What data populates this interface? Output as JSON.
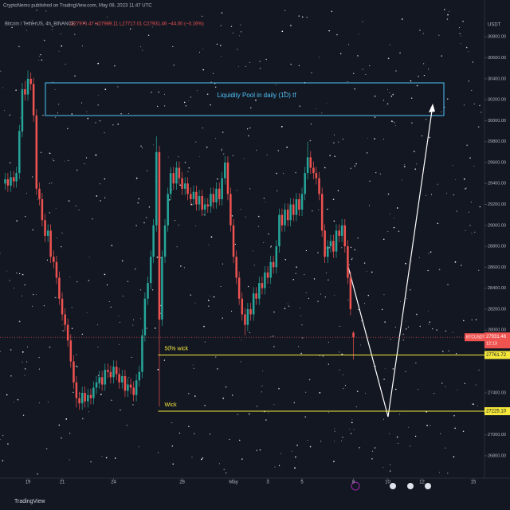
{
  "chart_data": {
    "type": "candlestick",
    "watermark": "CryptoNemo published on TradingView.com, May 08, 2023 11:47 UTC",
    "title": "Bitcoin / TetherUS, 4h, BINANCE",
    "legend_ohlc": "O27975.47 H27989.11 L27717.01 C27931.46 −44.00 (−0.16%)",
    "currency": "USDT",
    "annotation": "Liquidity Pool in daily (1D) tf",
    "footer": "TradingView",
    "up_color": "#26a69a",
    "down_color": "#ef5350",
    "level_color": "#f5e83b",
    "x": [
      17.67,
      17.83,
      18,
      18.17,
      18.33,
      18.5,
      18.67,
      18.83,
      19,
      19.17,
      19.33,
      19.5,
      19.67,
      19.83,
      20,
      20.17,
      20.33,
      20.5,
      20.67,
      20.83,
      21,
      21.17,
      21.33,
      21.5,
      21.67,
      21.83,
      22,
      22.17,
      22.33,
      22.5,
      22.67,
      22.83,
      23,
      23.17,
      23.33,
      23.5,
      23.67,
      23.83,
      24,
      24.17,
      24.33,
      24.5,
      24.67,
      24.83,
      25,
      25.17,
      25.33,
      25.5,
      25.67,
      25.83,
      26,
      26.17,
      26.33,
      26.5,
      26.67,
      26.83,
      27,
      27.17,
      27.33,
      27.5,
      27.67,
      27.83,
      28,
      28.17,
      28.33,
      28.5,
      28.67,
      28.83,
      29,
      29.17,
      29.33,
      29.5,
      29.67,
      29.83,
      30,
      30.17,
      30.33,
      30.5,
      30.67,
      30.83,
      31,
      31.17,
      31.33,
      31.5,
      31.67,
      31.83,
      32,
      32.17,
      32.33,
      32.5,
      32.67,
      32.83,
      33,
      33.17,
      33.33,
      33.5,
      33.67,
      33.83,
      34,
      34.17,
      34.33,
      34.5,
      34.67,
      34.83,
      35,
      35.17,
      35.33,
      35.5,
      35.67,
      35.83,
      36,
      36.17,
      36.33,
      36.5,
      36.67,
      36.83,
      37,
      37.17,
      37.33,
      37.5,
      37.67,
      37.83,
      38
    ],
    "ohlc": [
      [
        29400,
        29500,
        29340,
        29440
      ],
      [
        29440,
        29500,
        29320,
        29380
      ],
      [
        29380,
        29520,
        29320,
        29460
      ],
      [
        29460,
        29520,
        29360,
        29420
      ],
      [
        29420,
        29560,
        29360,
        29500
      ],
      [
        29500,
        29960,
        29440,
        29900
      ],
      [
        29900,
        30360,
        29840,
        30300
      ],
      [
        30300,
        30380,
        30190,
        30250
      ],
      [
        30250,
        30480,
        30190,
        30400
      ],
      [
        30400,
        30460,
        30290,
        30350
      ],
      [
        30350,
        30410,
        29990,
        30050
      ],
      [
        30050,
        30110,
        29290,
        29350
      ],
      [
        29350,
        29410,
        29190,
        29250
      ],
      [
        29250,
        29310,
        28990,
        29050
      ],
      [
        29050,
        29110,
        28840,
        28900
      ],
      [
        28900,
        29010,
        28840,
        28950
      ],
      [
        28950,
        29010,
        28640,
        28700
      ],
      [
        28700,
        28760,
        28590,
        28650
      ],
      [
        28650,
        28710,
        28440,
        28500
      ],
      [
        28500,
        28560,
        28240,
        28300
      ],
      [
        28300,
        28360,
        28090,
        28150
      ],
      [
        28150,
        28210,
        27990,
        28050
      ],
      [
        28050,
        28110,
        27840,
        27900
      ],
      [
        27900,
        27960,
        27640,
        27700
      ],
      [
        27700,
        27760,
        27440,
        27500
      ],
      [
        27500,
        27560,
        27260,
        27350
      ],
      [
        27350,
        27410,
        27240,
        27300
      ],
      [
        27300,
        27460,
        27240,
        27400
      ],
      [
        27400,
        27460,
        27260,
        27320
      ],
      [
        27320,
        27440,
        27260,
        27380
      ],
      [
        27380,
        27440,
        27290,
        27350
      ],
      [
        27350,
        27510,
        27290,
        27450
      ],
      [
        27450,
        27560,
        27390,
        27500
      ],
      [
        27500,
        27610,
        27440,
        27550
      ],
      [
        27550,
        27610,
        27420,
        27480
      ],
      [
        27480,
        27680,
        27420,
        27620
      ],
      [
        27620,
        27680,
        27540,
        27600
      ],
      [
        27600,
        27660,
        27490,
        27550
      ],
      [
        27550,
        27710,
        27490,
        27650
      ],
      [
        27650,
        27710,
        27520,
        27580
      ],
      [
        27580,
        27640,
        27440,
        27500
      ],
      [
        27500,
        27620,
        27440,
        27560
      ],
      [
        27560,
        27620,
        27360,
        27420
      ],
      [
        27420,
        27540,
        27360,
        27480
      ],
      [
        27480,
        27540,
        27390,
        27450
      ],
      [
        27450,
        27510,
        27320,
        27380
      ],
      [
        27380,
        27580,
        27320,
        27520
      ],
      [
        27520,
        27660,
        27460,
        27600
      ],
      [
        27600,
        28010,
        27540,
        27950
      ],
      [
        27950,
        28360,
        27890,
        28300
      ],
      [
        28300,
        28510,
        28240,
        28450
      ],
      [
        28450,
        28760,
        28390,
        28700
      ],
      [
        28700,
        29060,
        28640,
        29000
      ],
      [
        29000,
        29850,
        28940,
        29700
      ],
      [
        29700,
        29760,
        27270,
        28100
      ],
      [
        28100,
        28760,
        28040,
        28700
      ],
      [
        28700,
        29060,
        28640,
        29000
      ],
      [
        29000,
        29360,
        28940,
        29300
      ],
      [
        29300,
        29560,
        29240,
        29500
      ],
      [
        29500,
        29560,
        29340,
        29400
      ],
      [
        29400,
        29610,
        29340,
        29550
      ],
      [
        29550,
        29610,
        29390,
        29450
      ],
      [
        29450,
        29510,
        29290,
        29350
      ],
      [
        29350,
        29460,
        29290,
        29400
      ],
      [
        29400,
        29460,
        29240,
        29300
      ],
      [
        29300,
        29360,
        29190,
        29250
      ],
      [
        29250,
        29380,
        29190,
        29320
      ],
      [
        29320,
        29380,
        29140,
        29200
      ],
      [
        29200,
        29340,
        29140,
        29280
      ],
      [
        29280,
        29340,
        29090,
        29150
      ],
      [
        29150,
        29260,
        29090,
        29200
      ],
      [
        29200,
        29260,
        29120,
        29180
      ],
      [
        29180,
        29360,
        29120,
        29300
      ],
      [
        29300,
        29360,
        29160,
        29220
      ],
      [
        29220,
        29410,
        29160,
        29350
      ],
      [
        29350,
        29410,
        29190,
        29250
      ],
      [
        29250,
        29510,
        29190,
        29450
      ],
      [
        29450,
        29660,
        29390,
        29600
      ],
      [
        29600,
        29660,
        29240,
        29300
      ],
      [
        29300,
        29360,
        28940,
        29000
      ],
      [
        29000,
        29060,
        28640,
        28700
      ],
      [
        28700,
        28760,
        28440,
        28500
      ],
      [
        28500,
        28560,
        28240,
        28300
      ],
      [
        28300,
        28360,
        28090,
        28150
      ],
      [
        28150,
        28210,
        27950,
        28050
      ],
      [
        28050,
        28260,
        27990,
        28200
      ],
      [
        28200,
        28260,
        28090,
        28150
      ],
      [
        28150,
        28410,
        28090,
        28350
      ],
      [
        28350,
        28410,
        28240,
        28300
      ],
      [
        28300,
        28510,
        28240,
        28450
      ],
      [
        28450,
        28510,
        28340,
        28400
      ],
      [
        28400,
        28610,
        28340,
        28550
      ],
      [
        28550,
        28610,
        28440,
        28500
      ],
      [
        28500,
        28710,
        28440,
        28650
      ],
      [
        28650,
        28710,
        28540,
        28600
      ],
      [
        28600,
        28860,
        28540,
        28800
      ],
      [
        28800,
        29160,
        28740,
        29100
      ],
      [
        29100,
        29160,
        28940,
        29000
      ],
      [
        29000,
        29210,
        28940,
        29150
      ],
      [
        29150,
        29210,
        28990,
        29050
      ],
      [
        29050,
        29260,
        28990,
        29200
      ],
      [
        29200,
        29260,
        29040,
        29100
      ],
      [
        29100,
        29310,
        29040,
        29250
      ],
      [
        29250,
        29310,
        29090,
        29150
      ],
      [
        29150,
        29360,
        29090,
        29300
      ],
      [
        29300,
        29560,
        29240,
        29500
      ],
      [
        29500,
        29800,
        29440,
        29650
      ],
      [
        29650,
        29710,
        29490,
        29550
      ],
      [
        29550,
        29610,
        29440,
        29500
      ],
      [
        29500,
        29560,
        29390,
        29450
      ],
      [
        29450,
        29510,
        29240,
        29300
      ],
      [
        29300,
        29360,
        28890,
        28950
      ],
      [
        28950,
        29010,
        28640,
        28700
      ],
      [
        28700,
        28860,
        28640,
        28800
      ],
      [
        28800,
        28910,
        28740,
        28850
      ],
      [
        28850,
        28910,
        28690,
        28750
      ],
      [
        28750,
        29010,
        28690,
        28950
      ],
      [
        28950,
        29010,
        28840,
        28900
      ],
      [
        28900,
        29060,
        28840,
        29000
      ],
      [
        29000,
        29060,
        28740,
        28800
      ],
      [
        28800,
        28860,
        28440,
        28500
      ],
      [
        28500,
        28560,
        28140,
        28200
      ],
      [
        27975.47,
        27989.11,
        27717.01,
        27931.46
      ]
    ],
    "xlim": [
      17.37,
      45.65
    ],
    "ylim": [
      26586,
      31000
    ],
    "xticks": [
      19,
      21,
      24,
      28,
      {
        "value": 31,
        "label": "May"
      },
      {
        "value": 33,
        "label": "3"
      },
      {
        "value": 35,
        "label": "5"
      },
      {
        "value": 38,
        "label": "8"
      },
      {
        "value": 40,
        "label": "10"
      },
      {
        "value": 42,
        "label": "12"
      },
      {
        "value": 45,
        "label": "15"
      }
    ],
    "yticks": [
      {
        "value": 30800,
        "label": "30800.00"
      },
      {
        "value": 30600,
        "label": "30600.00"
      },
      {
        "value": 30400,
        "label": "30400.00"
      },
      {
        "value": 30200,
        "label": "30200.00"
      },
      {
        "value": 30000,
        "label": "30000.00"
      },
      {
        "value": 29800,
        "label": "29800.00"
      },
      {
        "value": 29600,
        "label": "29600.00"
      },
      {
        "value": 29400,
        "label": "29400.00"
      },
      {
        "value": 29200,
        "label": "29200.00"
      },
      {
        "value": 29000,
        "label": "29000.00"
      },
      {
        "value": 28800,
        "label": "28800.00"
      },
      {
        "value": 28600,
        "label": "28600.00"
      },
      {
        "value": 28400,
        "label": "28400.00"
      },
      {
        "value": 28200,
        "label": "28200.00"
      },
      {
        "value": 28000,
        "label": "28000.00"
      },
      {
        "value": 27400,
        "label": "27400.00"
      },
      {
        "value": 27000,
        "label": "27000.00"
      },
      {
        "value": 26800,
        "label": "26800.00"
      }
    ],
    "levels": [
      {
        "name": "50% wick",
        "value": 27761.72,
        "value_label": "27761.72"
      },
      {
        "name": "Wick",
        "value": 27225.1,
        "value_label": "27225.10"
      }
    ],
    "last_price": {
      "symbol": "BTCUSDT",
      "value": 27931.46,
      "value_label": "27931.46",
      "countdown": "12:13"
    }
  }
}
